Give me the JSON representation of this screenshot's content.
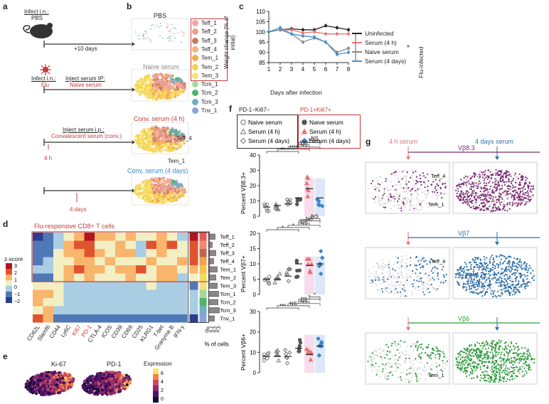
{
  "panels": {
    "a": "a",
    "b": "b",
    "c": "c",
    "d": "d",
    "e": "e",
    "f": "f",
    "g": "g"
  },
  "a": {
    "row1_top": "Infect i.n.:",
    "row1_bottom": "PBS",
    "row1_days": "+10 days",
    "row2_top": "Infect i.n.:",
    "row2_bottom": "Flu",
    "row2_inject_top": "Inject serum IP:",
    "row2_inject_bottom": "Naive serum",
    "row3_inject_top": "Inject serum i.p.:",
    "row3_inject_bottom": "Convalescent serum (conv.)",
    "row3_time": "4 h",
    "row4_time": "4 days"
  },
  "b": {
    "titles": [
      "PBS",
      "Naive serum",
      "Conv. serum (4 h)",
      "Conv. serum (4 days)"
    ],
    "annot_teff4": "Teff_4",
    "annot_tem1": "Tem_1",
    "legend": [
      {
        "label": "Teff_1",
        "color": "#f4a3a8"
      },
      {
        "label": "Teff_2",
        "color": "#e8a089"
      },
      {
        "label": "Teff_3",
        "color": "#c77b61"
      },
      {
        "label": "Teff_4",
        "color": "#f3b27a"
      },
      {
        "label": "Tem_1",
        "color": "#f6a94a"
      },
      {
        "label": "Tem_2",
        "color": "#f5d34a"
      },
      {
        "label": "Tem_3",
        "color": "#f7e07a"
      },
      {
        "label": "Tcm_1",
        "color": "#a8d99a"
      },
      {
        "label": "Tcm_2",
        "color": "#4fb36a"
      },
      {
        "label": "Tcm_3",
        "color": "#6fb0c8"
      },
      {
        "label": "Tnv_1",
        "color": "#8ea2d8"
      }
    ]
  },
  "c": {
    "ylabel": "Weight change (% of initial)",
    "xlabel": "Days after infection",
    "yticks": [
      "110",
      "105",
      "100",
      "95",
      "90",
      "85"
    ],
    "xticks": [
      "1",
      "2",
      "3",
      "4",
      "5",
      "6",
      "7",
      "8"
    ],
    "star": "*",
    "side_label": "Flu-infected",
    "legend": [
      "Uninfected",
      "Serum (4 h)",
      "Naive serum",
      "Serum (4 days)"
    ]
  },
  "chart_data": [
    {
      "type": "line",
      "title": "",
      "xlabel": "Days after infection",
      "ylabel": "Weight change (% of initial)",
      "x": [
        1,
        2,
        3,
        4,
        5,
        6,
        7,
        8
      ],
      "ylim": [
        85,
        110
      ],
      "series": [
        {
          "name": "Uninfected",
          "color": "#222222",
          "values": [
            100,
            101,
            101.5,
            101,
            101,
            103,
            102,
            101
          ]
        },
        {
          "name": "Serum (4 h)",
          "color": "#e8736f",
          "values": [
            100,
            101,
            101,
            99.5,
            100,
            99,
            99,
            99
          ]
        },
        {
          "name": "Naive serum",
          "color": "#888888",
          "values": [
            100,
            101,
            99,
            95,
            97,
            95,
            90,
            92
          ]
        },
        {
          "name": "Serum (4 days)",
          "color": "#4a8fd0",
          "values": [
            100,
            102,
            99,
            98,
            97.5,
            95,
            89,
            90
          ]
        }
      ]
    },
    {
      "type": "scatter",
      "title": "",
      "ylabel": "Percent Vβ8.3+",
      "ylim": [
        0,
        40
      ],
      "categories": [
        "Naive serum",
        "Serum (4 h)",
        "Serum (4 days)",
        "Naive serum",
        "Serum (4 h)",
        "Serum (4 days)"
      ],
      "means": [
        6,
        7,
        8,
        12,
        18,
        12
      ]
    },
    {
      "type": "scatter",
      "title": "",
      "ylabel": "Percent Vβ7+",
      "ylim": [
        0,
        20
      ],
      "categories": [
        "Naive serum",
        "Serum (4 h)",
        "Serum (4 days)",
        "Naive serum",
        "Serum (4 h)",
        "Serum (4 days)"
      ],
      "means": [
        5,
        5,
        6,
        10,
        9.5,
        10
      ]
    },
    {
      "type": "scatter",
      "title": "",
      "ylabel": "Percent Vβ6+",
      "ylim": [
        0,
        30
      ],
      "categories": [
        "Naive serum",
        "Serum (4 h)",
        "Serum (4 days)",
        "Naive serum",
        "Serum (4 h)",
        "Serum (4 days)"
      ],
      "means": [
        8,
        8,
        8,
        12,
        9,
        13
      ]
    }
  ],
  "d": {
    "title": "Flu-responsive CD8+ T cells",
    "scale_title": "z-score",
    "scale_ticks": [
      "3",
      "2",
      "1",
      "0",
      "−1",
      "−2"
    ],
    "columns": [
      "CD62L",
      "Slamf6",
      "CD44",
      "Ly6C",
      "Ki67",
      "PD-1",
      "CTLA-4",
      "ICOS",
      "CD39",
      "CD69",
      "CD25",
      "KLRG1",
      "T-bet",
      "Granyme B",
      "IFN-γ"
    ],
    "red_columns": [
      "Ki67",
      "PD-1"
    ],
    "rows": [
      "Teff_1",
      "Teff_2",
      "Teff_3",
      "Teff_4",
      "Tem_1",
      "Tem_2",
      "Tem_3",
      "Tcm_1",
      "Tcm_2",
      "Tcm_3",
      "Tnv_1"
    ],
    "bar_ticks": [
      "0%",
      "0.1",
      "0.2",
      "0.3"
    ],
    "bar_label": "% of cells"
  },
  "e": {
    "titles": [
      "Ki-67",
      "PD-1"
    ],
    "scale_title": "Expression",
    "scale_ticks": [
      "6",
      "4",
      "2",
      "0"
    ]
  },
  "f": {
    "legend_left_title": "PD-1−Ki67−",
    "legend_right_title": "PD-1+Ki67+",
    "legend_items": [
      "Naive serum",
      "Serum (4 h)",
      "Serum (4 days)"
    ],
    "plots": [
      {
        "ylabel": "Percent Vβ8.3+",
        "yticks": [
          "40",
          "30",
          "20",
          "10",
          "0"
        ],
        "sig": [
          "**",
          "****",
          "NS",
          "****",
          "*",
          "NS"
        ]
      },
      {
        "ylabel": "Percent Vβ7+",
        "yticks": [
          "20",
          "15",
          "10",
          "5",
          "0"
        ],
        "sig": [
          "*",
          "*",
          "NS",
          "****",
          "NS",
          "NS"
        ]
      },
      {
        "ylabel": "Percent Vβ6+",
        "yticks": [
          "30",
          "20",
          "10",
          "0"
        ],
        "sig": [
          "***",
          "NS",
          "NS",
          "***",
          "*",
          "*"
        ]
      }
    ]
  },
  "g": {
    "left_header": "4 h serum",
    "right_header": "4 days serum",
    "titles": [
      "Vβ8.3",
      "Vβ7",
      "Vβ6"
    ],
    "colors": [
      "#7b2e74",
      "#2d6fa8",
      "#2e9a3e"
    ],
    "annot": [
      [
        "Teff_4",
        "Tem_1"
      ],
      [
        "Teff_4"
      ],
      [
        "Tem_1"
      ]
    ]
  }
}
